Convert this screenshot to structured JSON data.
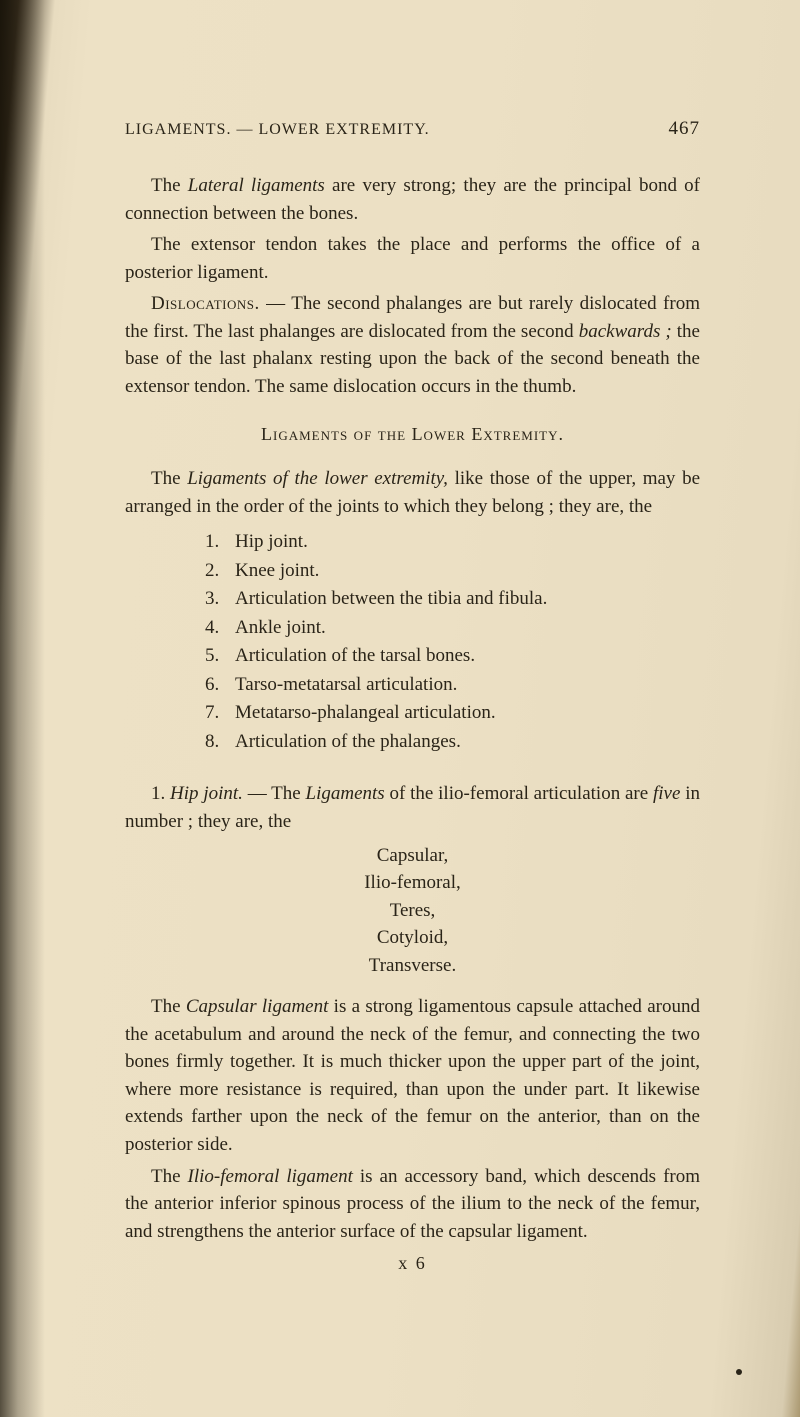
{
  "header": {
    "running_title": "LIGAMENTS. — LOWER EXTREMITY.",
    "page_number": "467"
  },
  "paragraphs": {
    "p1_a": "The ",
    "p1_b": "Lateral ligaments",
    "p1_c": " are very strong; they are the principal bond of connection between the bones.",
    "p2": "The extensor tendon takes the place and performs the office of a posterior ligament.",
    "p3_a": "Dislocations.",
    "p3_b": " — The second phalanges are but rarely dislocated from the first. The last phalanges are dislocated from the second ",
    "p3_c": "backwards ;",
    "p3_d": " the base of the last phalanx resting upon the back of the second beneath the extensor tendon. The same dislocation occurs in the thumb.",
    "section_heading": "Ligaments of the Lower Extremity.",
    "p4_a": "The ",
    "p4_b": "Ligaments of the lower extremity,",
    "p4_c": " like those of the upper, may be arranged in the order of the joints to which they belong ; they are, the",
    "p5_a": "1. ",
    "p5_b": "Hip joint.",
    "p5_c": " — The ",
    "p5_d": "Ligaments",
    "p5_e": " of the ilio-femoral articulation are ",
    "p5_f": "five",
    "p5_g": " in number ; they are, the",
    "p6_a": "The ",
    "p6_b": "Capsular ligament",
    "p6_c": " is a strong ligamentous capsule attached around the acetabulum and around the neck of the femur, and connecting the two bones firmly together. It is much thicker upon the upper part of the joint, where more resistance is required, than upon the under part. It likewise extends farther upon the neck of the femur on the anterior, than on the posterior side.",
    "p7_a": "The ",
    "p7_b": "Ilio-femoral ligament",
    "p7_c": " is an accessory band, which descends from the anterior inferior spinous process of the ilium to the neck of the femur, and strengthens the anterior surface of the capsular ligament."
  },
  "list1": [
    {
      "num": "1.",
      "text": "Hip joint."
    },
    {
      "num": "2.",
      "text": "Knee joint."
    },
    {
      "num": "3.",
      "text": "Articulation between the tibia and fibula."
    },
    {
      "num": "4.",
      "text": "Ankle joint."
    },
    {
      "num": "5.",
      "text": "Articulation of the tarsal bones."
    },
    {
      "num": "6.",
      "text": "Tarso-metatarsal articulation."
    },
    {
      "num": "7.",
      "text": "Metatarso-phalangeal articulation."
    },
    {
      "num": "8.",
      "text": "Articulation of the phalanges."
    }
  ],
  "list2": [
    "Capsular,",
    "Ilio-femoral,",
    "Teres,",
    "Cotyloid,",
    "Transverse."
  ],
  "signature": "x 6"
}
